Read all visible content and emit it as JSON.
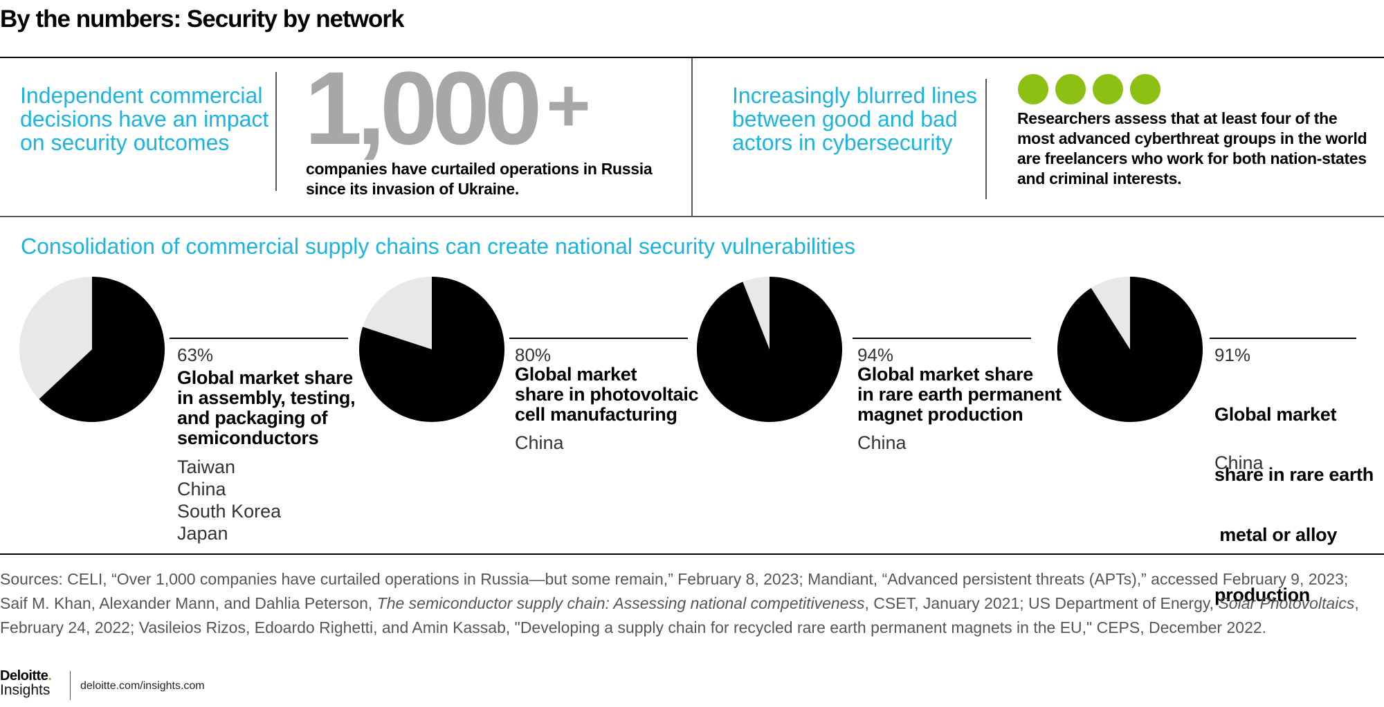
{
  "title": "By the numbers: Security by network",
  "top_row": {
    "left_heading": [
      "Independent commercial",
      "decisions have an impact",
      "on security outcomes"
    ],
    "big_number": "1,000",
    "big_number_suffix": "+",
    "big_number_caption": [
      "companies have curtailed operations in Russia",
      "since its invasion of Ukraine."
    ],
    "right_heading": [
      "Increasingly blurred lines",
      "between good and bad",
      "actors in cybersecurity"
    ],
    "dots_count": 4,
    "dots_color": "#8cc113",
    "right_caption": [
      "Researchers assess that at least four of the",
      "most advanced cyberthreat groups in the world",
      "are freelancers who work for both nation-states",
      "and criminal interests."
    ]
  },
  "section_heading": "Consolidation of commercial supply chains can create national security vulnerabilities",
  "chart_data": {
    "type": "pie",
    "colors": {
      "share": "#000000",
      "rest": "#e8e8e8"
    },
    "pies": [
      {
        "percent_label": "63%",
        "value": 63,
        "description": [
          "Global market share",
          "in assembly, testing,",
          "and packaging of",
          "semiconductors"
        ],
        "countries": [
          "Taiwan",
          "China",
          "South Korea",
          "Japan"
        ]
      },
      {
        "percent_label": "80%",
        "value": 80,
        "description": [
          "Global market",
          "share in photovoltaic",
          "cell manufacturing"
        ],
        "countries": [
          "China"
        ]
      },
      {
        "percent_label": "94%",
        "value": 94,
        "description": [
          "Global market share",
          "in rare earth permanent",
          "magnet production"
        ],
        "countries": [
          "China"
        ]
      },
      {
        "percent_label": "91%",
        "value": 91,
        "description": [
          "Global market",
          "share in rare earth",
          " metal or alloy",
          "production"
        ],
        "countries": [
          "China"
        ]
      }
    ]
  },
  "sources": {
    "p1": "Sources: CELI, “Over 1,000 companies have curtailed operations in Russia—but some remain,” February 8, 2023; Mandiant, “Advanced persistent threats (APTs),” accessed February 9, 2023; Saif M. Khan, Alexander Mann, and Dahlia Peterson, ",
    "i1": "The semiconductor supply chain: Assessing national competitiveness",
    "p2": ", CSET, January 2021; US Department of Energy, ",
    "i2": "Solar Photovoltaics",
    "p3": ", February 24, 2022; Vasileios Rizos, Edoardo Righetti, and Amin Kassab, \"Developing a supply chain for recycled rare earth permanent magnets in the EU,\" CEPS, December 2022."
  },
  "footer": {
    "logo_word": "Deloitte",
    "logo_dot": ".",
    "logo_sub": "Insights",
    "url": "deloitte.com/insights.com"
  }
}
